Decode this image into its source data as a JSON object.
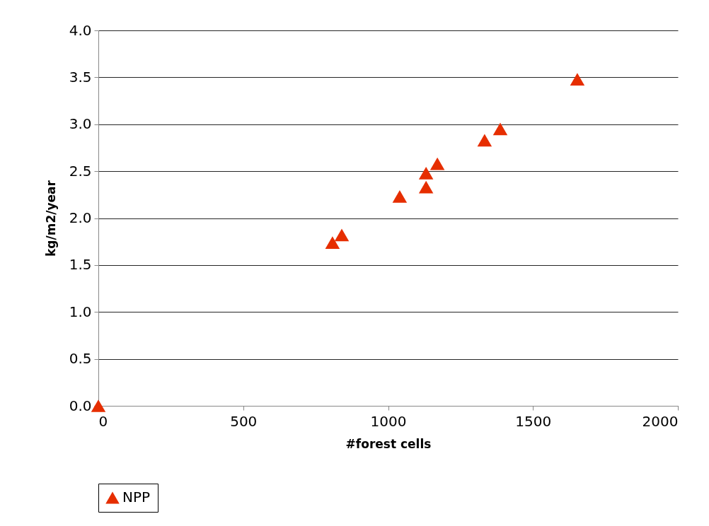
{
  "chart_data": {
    "type": "scatter",
    "xlabel": "#forest cells",
    "ylabel": "kg/m2/year",
    "x": [
      0,
      808,
      840,
      1040,
      1131,
      1131,
      1170,
      1333,
      1387,
      1653
    ],
    "series": [
      {
        "name": "NPP",
        "color": "#e62e00",
        "values": [
          0,
          1.74,
          1.82,
          2.23,
          2.48,
          2.33,
          2.58,
          2.83,
          2.95,
          3.48
        ]
      }
    ],
    "xlim": [
      0,
      2000
    ],
    "xticks": [
      0,
      500,
      1000,
      1500,
      2000
    ],
    "ylim": [
      0,
      4
    ],
    "yticks": [
      {
        "value": 0,
        "label": "0.0"
      },
      {
        "value": 0.5,
        "label": "0.5"
      },
      {
        "value": 1,
        "label": "1.0"
      },
      {
        "value": 1.5,
        "label": "1.5"
      },
      {
        "value": 2,
        "label": "2.0"
      },
      {
        "value": 2.5,
        "label": "2.5"
      },
      {
        "value": 3,
        "label": "3.0"
      },
      {
        "value": 3.5,
        "label": "3.5"
      },
      {
        "value": 4,
        "label": "4.0"
      }
    ],
    "grid": "y",
    "legend": "bottom",
    "marker": "triangle"
  }
}
